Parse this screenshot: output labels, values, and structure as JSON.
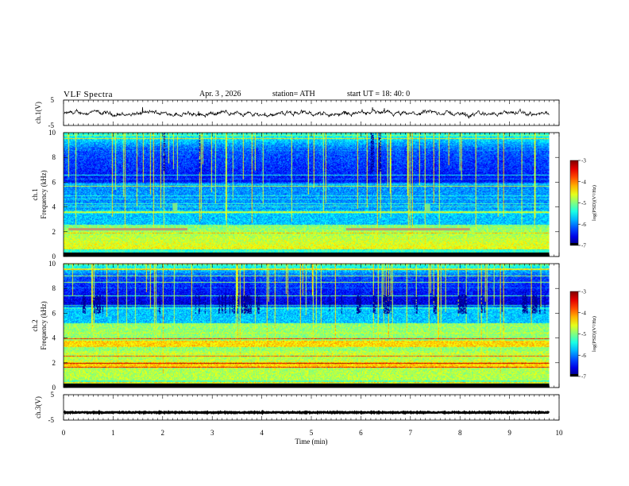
{
  "header": {
    "title": "VLF  Spectra",
    "date": "Apr. 3  , 2026",
    "station": "station= ATH",
    "start_ut": "start  UT  =   18: 40: 0"
  },
  "chart_data": [
    {
      "type": "line",
      "name": "ch1-waveform",
      "ylabel": "ch.1(V)",
      "ylim": [
        -5,
        5
      ],
      "yticks": [
        "5",
        "-5"
      ],
      "xlim": [
        0,
        10
      ],
      "data_end_min": 9.8,
      "mean": -0.3
    },
    {
      "type": "heatmap",
      "name": "ch1-spectrogram",
      "ylabel": "ch.1\nFrequency (kHz)",
      "ylabel_line1": "ch.1",
      "ylabel_line2": "Frequency (kHz)",
      "ylim": [
        0,
        10
      ],
      "yticks": [
        "0",
        "2",
        "4",
        "6",
        "8",
        "10"
      ],
      "xlim": [
        0,
        10
      ],
      "data_end_min": 9.8,
      "colorbar": {
        "label": "log(PSD)(V²/Hz)",
        "range": [
          -7,
          -3
        ],
        "ticks": [
          "-3",
          "-4",
          "-5",
          "-6",
          "-7"
        ]
      },
      "features": [
        {
          "kind": "whistler-band",
          "freq_khz": 2.2,
          "from_min": 0.1,
          "to_min": 2.5
        },
        {
          "kind": "whistler-band",
          "freq_khz": 2.2,
          "from_min": 5.7,
          "to_min": 8.2
        },
        {
          "kind": "spot",
          "t_min": 2.25,
          "freq_khz": 4.0
        },
        {
          "kind": "spot",
          "t_min": 7.35,
          "freq_khz": 3.9
        }
      ]
    },
    {
      "type": "heatmap",
      "name": "ch2-spectrogram",
      "ylabel_line1": "ch.2",
      "ylabel_line2": "Frequency (kHz)",
      "ylim": [
        0,
        10
      ],
      "yticks": [
        "0",
        "2",
        "4",
        "6",
        "8",
        "10"
      ],
      "xlim": [
        0,
        10
      ],
      "data_end_min": 9.8,
      "colorbar": {
        "label": "log(PSD)(V²/Hz)",
        "range": [
          -7,
          -3
        ],
        "ticks": [
          "-3",
          "-4",
          "-5",
          "-6",
          "-7"
        ]
      }
    },
    {
      "type": "line",
      "name": "ch3-waveform",
      "ylabel": "ch.3(V)",
      "ylim": [
        -5,
        5
      ],
      "yticks": [
        "5",
        "-5"
      ],
      "xlim": [
        0,
        10
      ],
      "data_end_min": 9.8,
      "mean": -2.0
    }
  ],
  "xaxis": {
    "label": "Time  (min)",
    "ticks": [
      "0",
      "1",
      "2",
      "3",
      "4",
      "5",
      "6",
      "7",
      "8",
      "9",
      "10"
    ]
  }
}
